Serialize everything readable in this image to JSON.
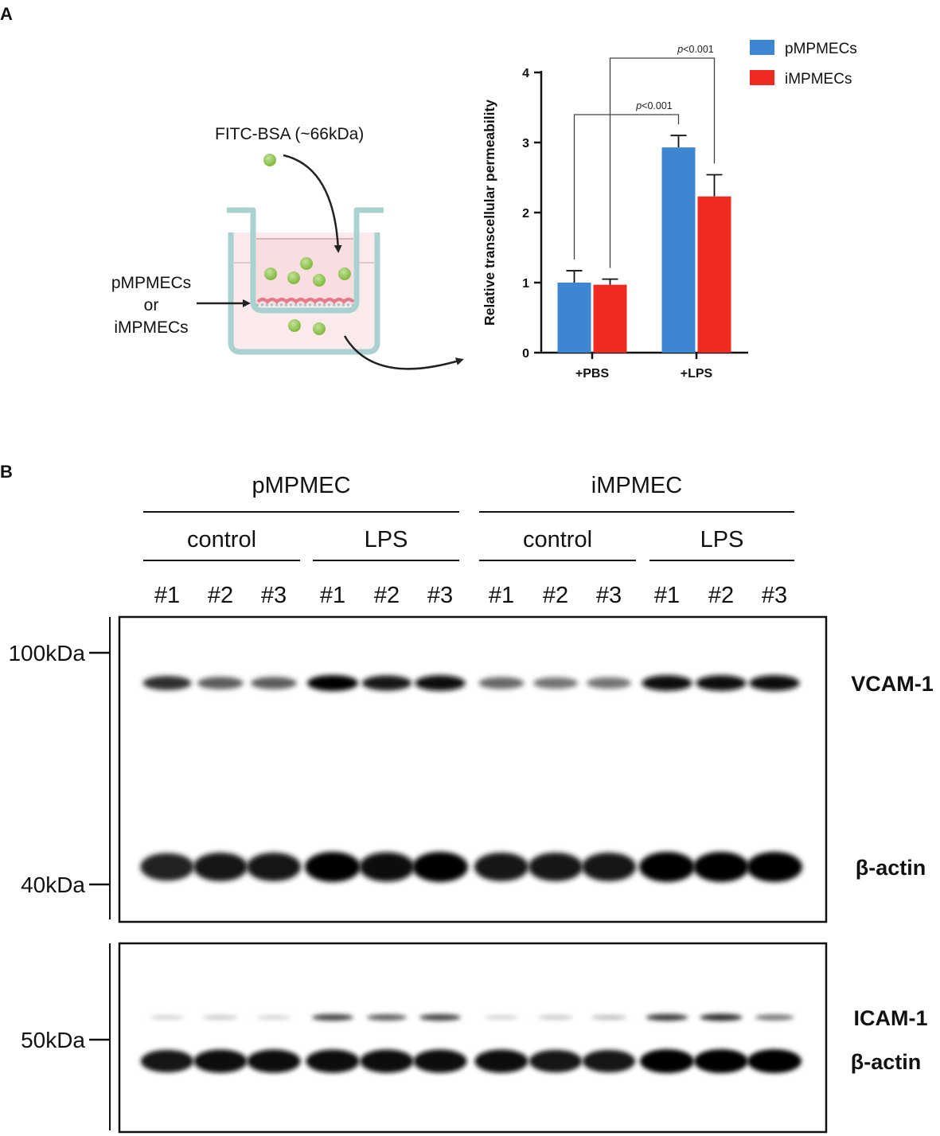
{
  "panel_a": {
    "letter": "A",
    "schematic": {
      "tracer_label": "FITC-BSA (~66kDa)",
      "cells_label_1": "pMPMECs",
      "cells_label_or": "or",
      "cells_label_2": "iMPMECs",
      "tracer_color": "#8dc63f",
      "cell_color": "#e8798a"
    }
  },
  "chart_data": {
    "type": "bar",
    "title": "",
    "xlabel": "",
    "ylabel": "Relative transcellular permeability",
    "ylim": [
      0,
      4
    ],
    "yticks": [
      "0",
      "1",
      "2",
      "3",
      "4"
    ],
    "categories": [
      "+PBS",
      "+LPS"
    ],
    "series": [
      {
        "name": "pMPMECs",
        "color": "#3d87d2",
        "values": [
          1.0,
          2.93
        ],
        "errors": [
          0.17,
          0.17
        ]
      },
      {
        "name": "iMPMECs",
        "color": "#ee2a21",
        "values": [
          0.97,
          2.23
        ],
        "errors": [
          0.08,
          0.31
        ]
      }
    ],
    "legend_position": "top-right",
    "grid": false,
    "annotations": [
      {
        "text": "p<0.001",
        "between": [
          "+PBS / pMPMECs",
          "+LPS / pMPMECs"
        ]
      },
      {
        "text": "p<0.001",
        "between": [
          "+PBS / iMPMECs",
          "+LPS / iMPMECs"
        ]
      }
    ]
  },
  "panel_b": {
    "letter": "B",
    "groups": [
      {
        "name": "pMPMEC",
        "conditions": [
          {
            "name": "control",
            "lanes": [
              "#1",
              "#2",
              "#3"
            ]
          },
          {
            "name": "LPS",
            "lanes": [
              "#1",
              "#2",
              "#3"
            ]
          }
        ]
      },
      {
        "name": "iMPMEC",
        "conditions": [
          {
            "name": "control",
            "lanes": [
              "#1",
              "#2",
              "#3"
            ]
          },
          {
            "name": "LPS",
            "lanes": [
              "#1",
              "#2",
              "#3"
            ]
          }
        ]
      }
    ],
    "blot1": {
      "markers": [
        "100kDa",
        "40kDa"
      ],
      "bands": [
        {
          "label": "VCAM-1",
          "intensity": [
            0.8,
            0.6,
            0.6,
            1.0,
            0.9,
            0.95,
            0.55,
            0.5,
            0.5,
            0.95,
            0.95,
            0.95
          ]
        },
        {
          "label": "β-actin",
          "intensity": [
            0.85,
            0.9,
            0.9,
            1.0,
            0.95,
            1.0,
            0.9,
            0.9,
            0.9,
            1.0,
            1.0,
            1.0
          ]
        }
      ]
    },
    "blot2": {
      "markers": [
        "50kDa"
      ],
      "bands": [
        {
          "label": "ICAM-1",
          "intensity": [
            0.1,
            0.15,
            0.1,
            0.7,
            0.6,
            0.7,
            0.1,
            0.15,
            0.2,
            0.75,
            0.8,
            0.5
          ]
        },
        {
          "label": "β-actin",
          "intensity": [
            0.9,
            0.95,
            0.95,
            0.95,
            0.95,
            0.95,
            0.95,
            0.9,
            0.9,
            1.0,
            1.0,
            1.0
          ]
        }
      ]
    }
  }
}
